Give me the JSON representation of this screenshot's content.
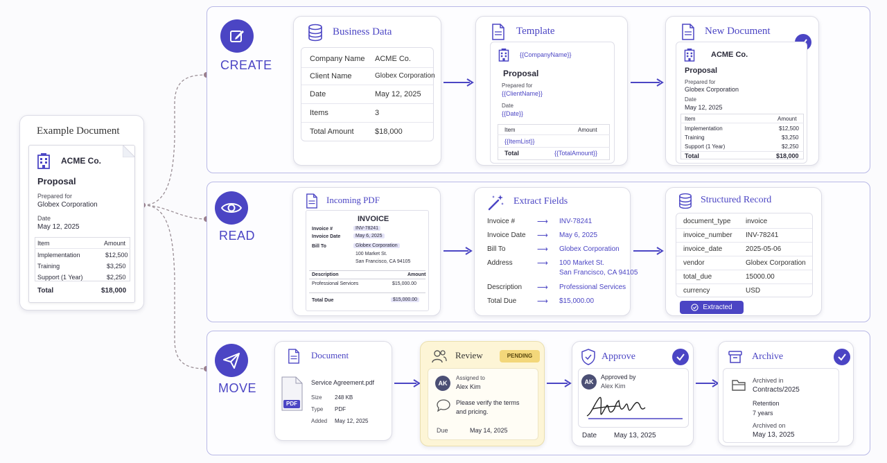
{
  "example": {
    "title": "Example Document",
    "company": "ACME Co.",
    "doc_title": "Proposal",
    "prepared_for_label": "Prepared for",
    "prepared_for": "Globex Corporation",
    "date_label": "Date",
    "date": "May 12, 2025",
    "table_headers": [
      "Item",
      "Amount"
    ],
    "items": [
      {
        "item": "Implementation",
        "amount": "$12,500"
      },
      {
        "item": "Training",
        "amount": "$3,250"
      },
      {
        "item": "Support (1 Year)",
        "amount": "$2,250"
      }
    ],
    "total_label": "Total",
    "total": "$18,000"
  },
  "stages": {
    "create": "CREATE",
    "read": "READ",
    "move": "MOVE"
  },
  "create": {
    "business_data": {
      "title": "Business Data",
      "rows": [
        {
          "label": "Company Name",
          "value": "ACME Co."
        },
        {
          "label": "Client Name",
          "value": "Globex Corporation"
        },
        {
          "label": "Date",
          "value": "May 12, 2025"
        },
        {
          "label": "Items",
          "value": "3"
        },
        {
          "label": "Total Amount",
          "value": "$18,000"
        }
      ]
    },
    "template": {
      "title": "Template",
      "company_ph": "{{CompanyName}}",
      "doc_title": "Proposal",
      "prepared_for_label": "Prepared for",
      "client_ph": "{{ClientName}}",
      "date_label": "Date",
      "date_ph": "{{Date}}",
      "table_headers": [
        "Item",
        "Amount"
      ],
      "item_list_ph": "{{ItemList}}",
      "total_label": "Total",
      "total_ph": "{{TotalAmount}}"
    },
    "new_document": {
      "title": "New Document",
      "company": "ACME Co.",
      "doc_title": "Proposal",
      "prepared_for_label": "Prepared for",
      "prepared_for": "Globex Corporation",
      "date_label": "Date",
      "date": "May 12, 2025",
      "table_headers": [
        "Item",
        "Amount"
      ],
      "items": [
        {
          "item": "Implementation",
          "amount": "$12,500"
        },
        {
          "item": "Training",
          "amount": "$3,250"
        },
        {
          "item": "Support (1 Year)",
          "amount": "$2,250"
        }
      ],
      "total_label": "Total",
      "total": "$18,000"
    }
  },
  "read": {
    "incoming_pdf": {
      "title": "Incoming PDF",
      "invoice_heading": "INVOICE",
      "invoice_no_label": "Invoice #",
      "invoice_no": "INV-78241",
      "invoice_date_label": "Invoice Date",
      "invoice_date": "May 6, 2025",
      "bill_to_label": "Bill To",
      "bill_to": "Globex Corporation",
      "address1": "100 Market St.",
      "address2": "San Francisco, CA 94105",
      "desc_header": "Description",
      "amount_header": "Amount",
      "line_desc": "Professional Services",
      "line_amount": "$15,000.00",
      "total_due_label": "Total Due",
      "total_due": "$15,000.00"
    },
    "extract_fields": {
      "title": "Extract Fields",
      "arrow": "⟶",
      "rows": [
        {
          "label": "Invoice #",
          "value": "INV-78241"
        },
        {
          "label": "Invoice Date",
          "value": "May 6, 2025"
        },
        {
          "label": "Bill To",
          "value": "Globex Corporation"
        },
        {
          "label": "Address",
          "value": "100 Market St.",
          "value2": "San Francisco, CA 94105"
        },
        {
          "label": "Description",
          "value": "Professional Services"
        },
        {
          "label": "Total Due",
          "value": "$15,000.00"
        }
      ]
    },
    "structured_record": {
      "title": "Structured Record",
      "rows": [
        {
          "key": "document_type",
          "value": "invoice"
        },
        {
          "key": "invoice_number",
          "value": "INV-78241"
        },
        {
          "key": "invoice_date",
          "value": "2025-05-06"
        },
        {
          "key": "vendor",
          "value": "Globex Corporation"
        },
        {
          "key": "total_due",
          "value": "15000.00"
        },
        {
          "key": "currency",
          "value": "USD"
        }
      ],
      "status": "Extracted"
    }
  },
  "move": {
    "document": {
      "title": "Document",
      "file_badge": "PDF",
      "file_name": "Service Agreement.pdf",
      "size_label": "Size",
      "size": "248 KB",
      "type_label": "Type",
      "type": "PDF",
      "added_label": "Added",
      "added": "May 12, 2025"
    },
    "review": {
      "title": "Review",
      "badge": "PENDING",
      "avatar": "AK",
      "assigned_label": "Assigned to",
      "assignee": "Alex Kim",
      "comment_line1": "Please verify the terms",
      "comment_line2": "and pricing.",
      "due_label": "Due",
      "due": "May 14, 2025"
    },
    "approve": {
      "title": "Approve",
      "avatar": "AK",
      "approved_label": "Approved by",
      "approver": "Alex Kim",
      "date_label": "Date",
      "date": "May 13, 2025"
    },
    "archive": {
      "title": "Archive",
      "archived_in_label": "Archived in",
      "archived_in": "Contracts/2025",
      "retention_label": "Retention",
      "retention": "7 years",
      "archived_on_label": "Archived on",
      "archived_on": "May 13, 2025"
    }
  },
  "colors": {
    "accent": "#4b45c4",
    "lane_border": "#b8b8e6",
    "pending_bg": "#fdf5d6",
    "pending_badge": "#f3d77a"
  }
}
